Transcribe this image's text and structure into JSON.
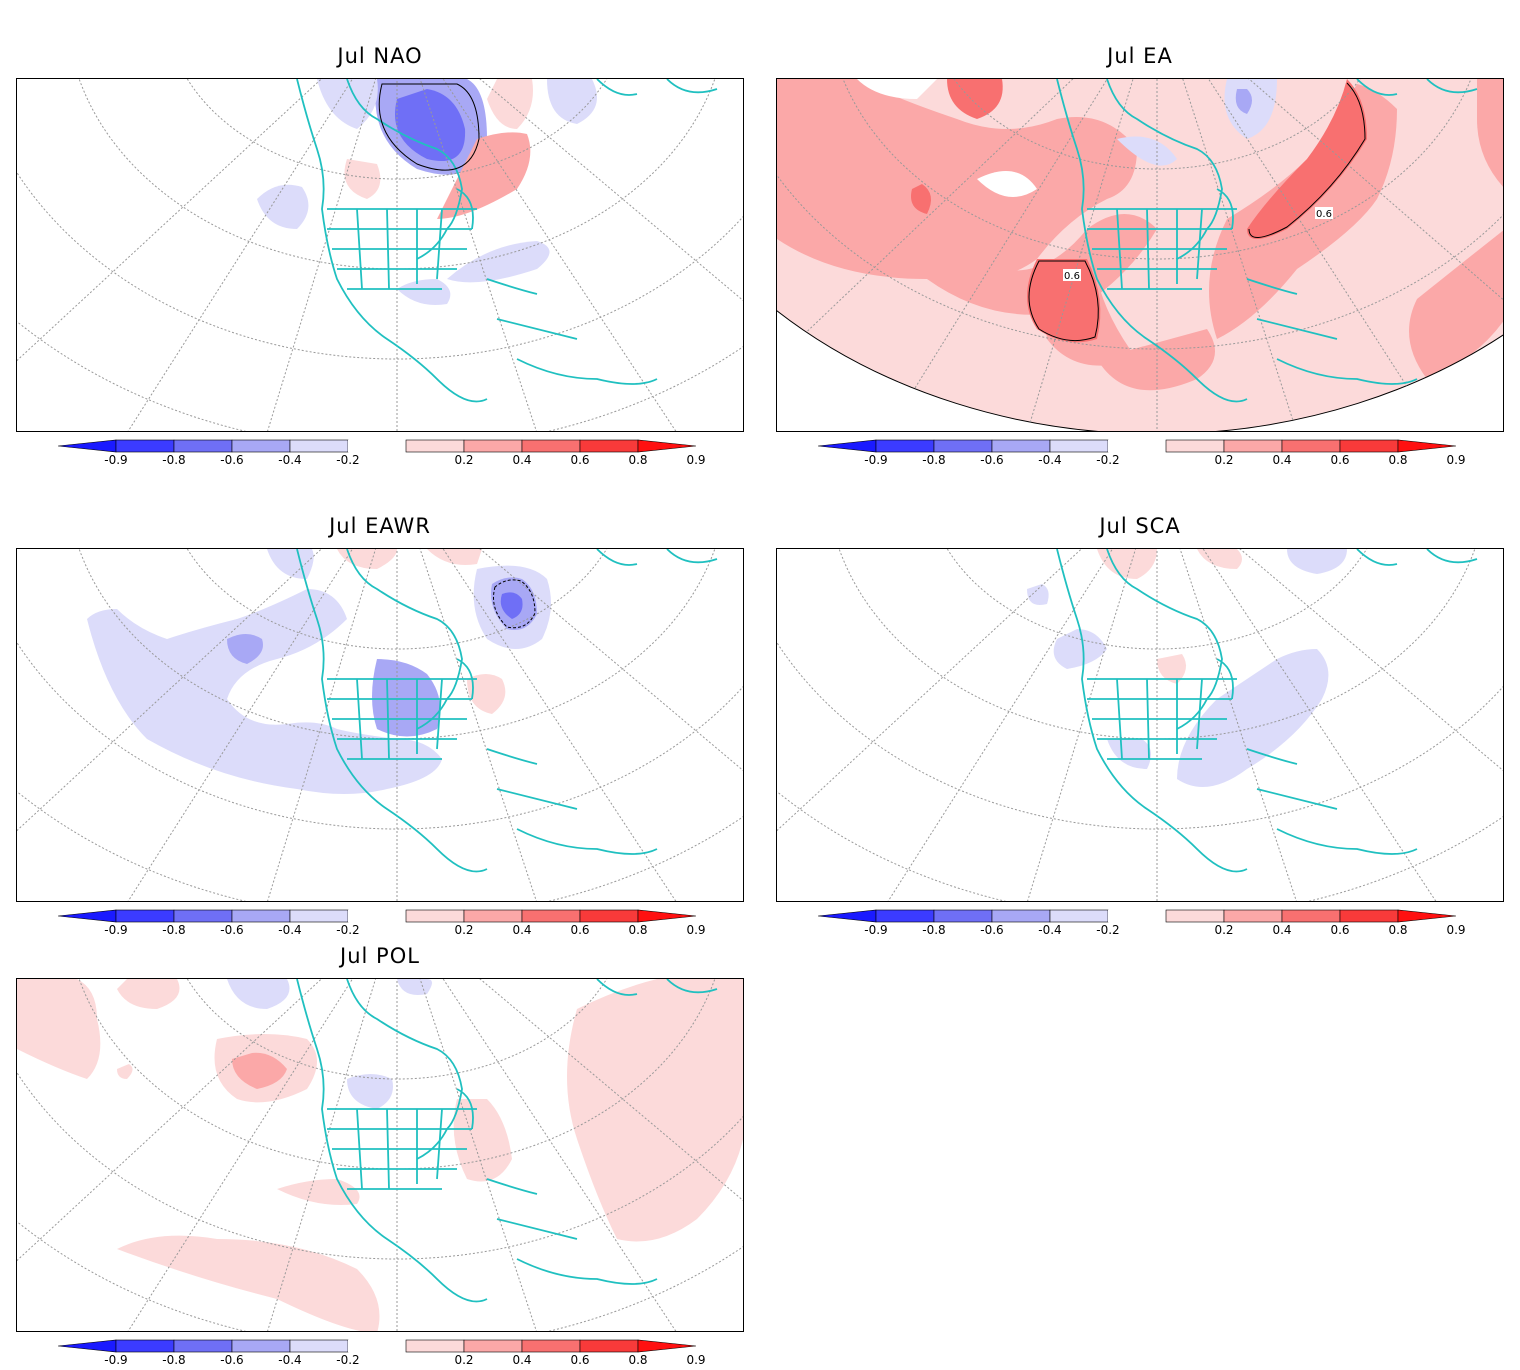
{
  "panels": [
    {
      "id": "nao",
      "title": "Jul NAO"
    },
    {
      "id": "ea",
      "title": "Jul EA"
    },
    {
      "id": "eawr",
      "title": "Jul EAWR"
    },
    {
      "id": "sca",
      "title": "Jul SCA"
    },
    {
      "id": "pol",
      "title": "Jul POL"
    }
  ],
  "colorbar": {
    "ticks": [
      "-0.9",
      "-0.8",
      "-0.6",
      "-0.4",
      "-0.2",
      "0.2",
      "0.4",
      "0.6",
      "0.8",
      "0.9"
    ],
    "colors": [
      "#1a1aff",
      "#3b3bff",
      "#6f6ff6",
      "#a8a8f5",
      "#dcdcfa",
      "#ffffff",
      "#fcdada",
      "#fba8a8",
      "#f87070",
      "#f83a3a",
      "#ff1010"
    ]
  },
  "contour_labels": {
    "ea": [
      "0.6",
      "0.6"
    ]
  },
  "colors": {
    "coast": "#20c0c0",
    "grid": "#888888",
    "blue1": "#dcdcfa",
    "blue2": "#a8a8f5",
    "blue3": "#6f6ff6",
    "blue4": "#3b3bff",
    "red1": "#fcdada",
    "red2": "#fba8a8",
    "red3": "#f87070"
  }
}
